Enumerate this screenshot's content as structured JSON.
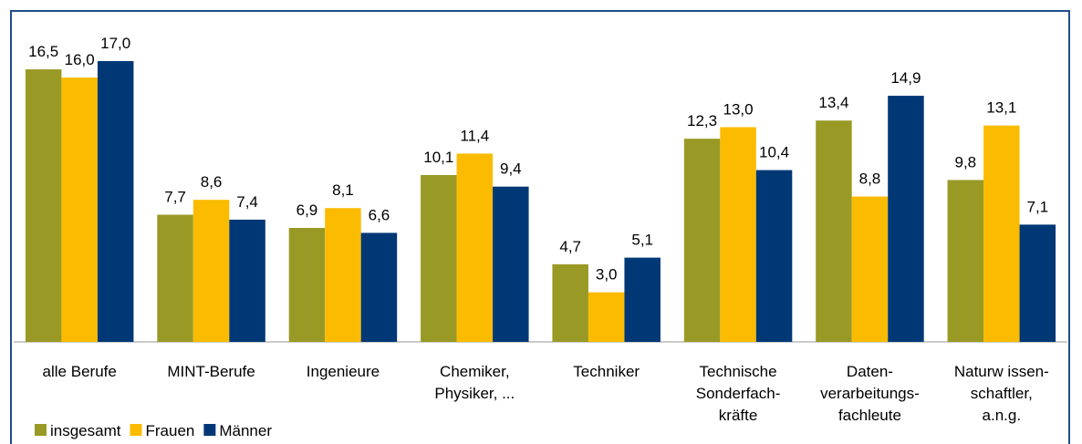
{
  "chart_data": {
    "type": "bar",
    "categories": [
      "alle Berufe",
      "MINT-Berufe",
      "Ingenieure",
      "Chemiker,\nPhysiker, ...",
      "Techniker",
      "Technische\nSonderfach-\nkräfte",
      "Daten-\nverarbeitungs-\nfachleute",
      "Naturw issen-\nschaftler,\na.n.g."
    ],
    "series": [
      {
        "name": "insgesamt",
        "color": "#999a26",
        "values": [
          16.5,
          7.7,
          6.9,
          10.1,
          4.7,
          12.3,
          13.4,
          9.8
        ],
        "value_labels": [
          "16,5",
          "7,7",
          "6,9",
          "10,1",
          "4,7",
          "12,3",
          "13,4",
          "9,8"
        ]
      },
      {
        "name": "Frauen",
        "color": "#fbbb00",
        "values": [
          16.0,
          8.6,
          8.1,
          11.4,
          3.0,
          13.0,
          8.8,
          13.1
        ],
        "value_labels": [
          "16,0",
          "8,6",
          "8,1",
          "11,4",
          "3,0",
          "13,0",
          "8,8",
          "13,1"
        ]
      },
      {
        "name": "Männer",
        "color": "#003876",
        "values": [
          17.0,
          7.4,
          6.6,
          9.4,
          5.1,
          10.4,
          14.9,
          7.1
        ],
        "value_labels": [
          "17,0",
          "7,4",
          "6,6",
          "9,4",
          "5,1",
          "10,4",
          "14,9",
          "7,1"
        ]
      }
    ],
    "legend": "bottom-left"
  }
}
